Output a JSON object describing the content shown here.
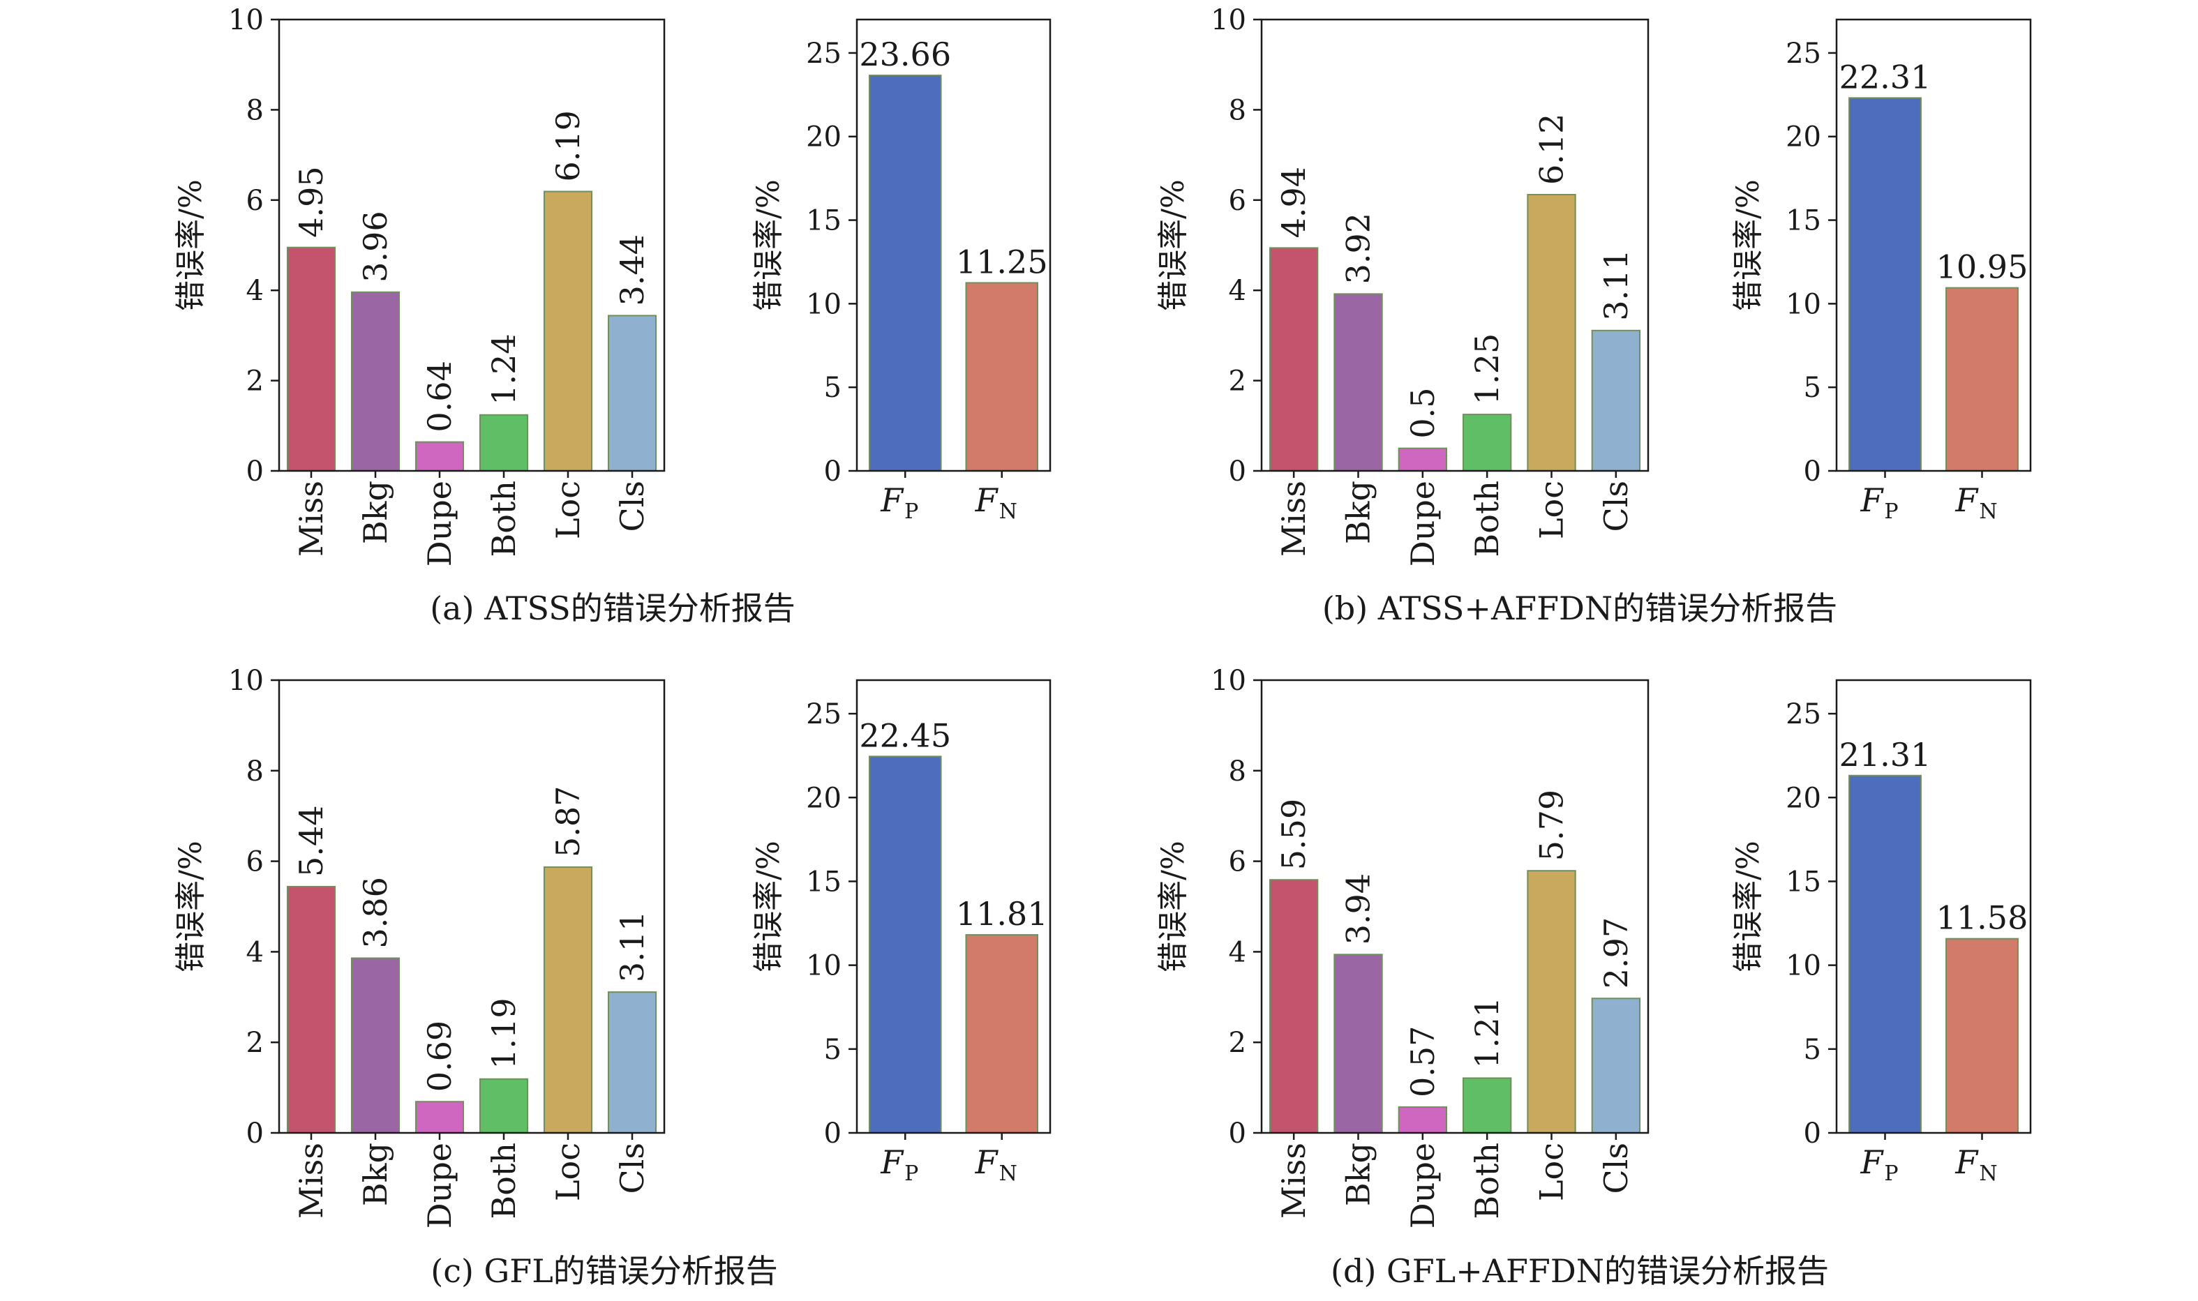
{
  "chart_data": [
    {
      "caption": "(a) ATSS的错误分析报告",
      "charts": [
        {
          "type": "bar",
          "ylabel": "错误率/%",
          "ylim": [
            0,
            10
          ],
          "yticks": [
            0,
            2,
            4,
            6,
            8,
            10
          ],
          "categories": [
            "Miss",
            "Bkg",
            "Dupe",
            "Both",
            "Loc",
            "Cls"
          ],
          "values": [
            4.95,
            3.96,
            0.64,
            1.24,
            6.19,
            3.44
          ],
          "labels": [
            "4.95",
            "3.96",
            "0.64",
            "1.24",
            "6.19",
            "3.44"
          ]
        },
        {
          "type": "bar",
          "ylabel": "错误率/%",
          "ylim": [
            0,
            27
          ],
          "yticks": [
            0,
            5,
            10,
            15,
            20,
            25
          ],
          "categories": [
            "F",
            "F"
          ],
          "subscripts": [
            "P",
            "N"
          ],
          "values": [
            23.66,
            11.25
          ],
          "labels": [
            "23.66",
            "11.25"
          ]
        }
      ]
    },
    {
      "caption": "(b) ATSS+AFFDN的错误分析报告",
      "charts": [
        {
          "type": "bar",
          "ylabel": "错误率/%",
          "ylim": [
            0,
            10
          ],
          "yticks": [
            0,
            2,
            4,
            6,
            8,
            10
          ],
          "categories": [
            "Miss",
            "Bkg",
            "Dupe",
            "Both",
            "Loc",
            "Cls"
          ],
          "values": [
            4.94,
            3.92,
            0.5,
            1.25,
            6.12,
            3.11
          ],
          "labels": [
            "4.94",
            "3.92",
            "0.5",
            "1.25",
            "6.12",
            "3.11"
          ]
        },
        {
          "type": "bar",
          "ylabel": "错误率/%",
          "ylim": [
            0,
            27
          ],
          "yticks": [
            0,
            5,
            10,
            15,
            20,
            25
          ],
          "categories": [
            "F",
            "F"
          ],
          "subscripts": [
            "P",
            "N"
          ],
          "values": [
            22.31,
            10.95
          ],
          "labels": [
            "22.31",
            "10.95"
          ]
        }
      ]
    },
    {
      "caption": "(c) GFL的错误分析报告",
      "charts": [
        {
          "type": "bar",
          "ylabel": "错误率/%",
          "ylim": [
            0,
            10
          ],
          "yticks": [
            0,
            2,
            4,
            6,
            8,
            10
          ],
          "categories": [
            "Miss",
            "Bkg",
            "Dupe",
            "Both",
            "Loc",
            "Cls"
          ],
          "values": [
            5.44,
            3.86,
            0.69,
            1.19,
            5.87,
            3.11
          ],
          "labels": [
            "5.44",
            "3.86",
            "0.69",
            "1.19",
            "5.87",
            "3.11"
          ]
        },
        {
          "type": "bar",
          "ylabel": "错误率/%",
          "ylim": [
            0,
            27
          ],
          "yticks": [
            0,
            5,
            10,
            15,
            20,
            25
          ],
          "categories": [
            "F",
            "F"
          ],
          "subscripts": [
            "P",
            "N"
          ],
          "values": [
            22.45,
            11.81
          ],
          "labels": [
            "22.45",
            "11.81"
          ]
        }
      ]
    },
    {
      "caption": "(d) GFL+AFFDN的错误分析报告",
      "charts": [
        {
          "type": "bar",
          "ylabel": "错误率/%",
          "ylim": [
            0,
            10
          ],
          "yticks": [
            0,
            2,
            4,
            6,
            8,
            10
          ],
          "categories": [
            "Miss",
            "Bkg",
            "Dupe",
            "Both",
            "Loc",
            "Cls"
          ],
          "values": [
            5.59,
            3.94,
            0.57,
            1.21,
            5.79,
            2.97
          ],
          "labels": [
            "5.59",
            "3.94",
            "0.57",
            "1.21",
            "5.79",
            "2.97"
          ]
        },
        {
          "type": "bar",
          "ylabel": "错误率/%",
          "ylim": [
            0,
            27
          ],
          "yticks": [
            0,
            5,
            10,
            15,
            20,
            25
          ],
          "categories": [
            "F",
            "F"
          ],
          "subscripts": [
            "P",
            "N"
          ],
          "values": [
            21.31,
            11.58
          ],
          "labels": [
            "21.31",
            "11.58"
          ]
        }
      ]
    }
  ],
  "colors": {
    "Miss": "#c4536e",
    "Bkg": "#9a66a4",
    "Dupe": "#cf66c0",
    "Both": "#5fbe66",
    "Loc": "#c9a95e",
    "Cls": "#8fb0cf",
    "FP": "#4f6dbd",
    "FN": "#d37b6a"
  }
}
